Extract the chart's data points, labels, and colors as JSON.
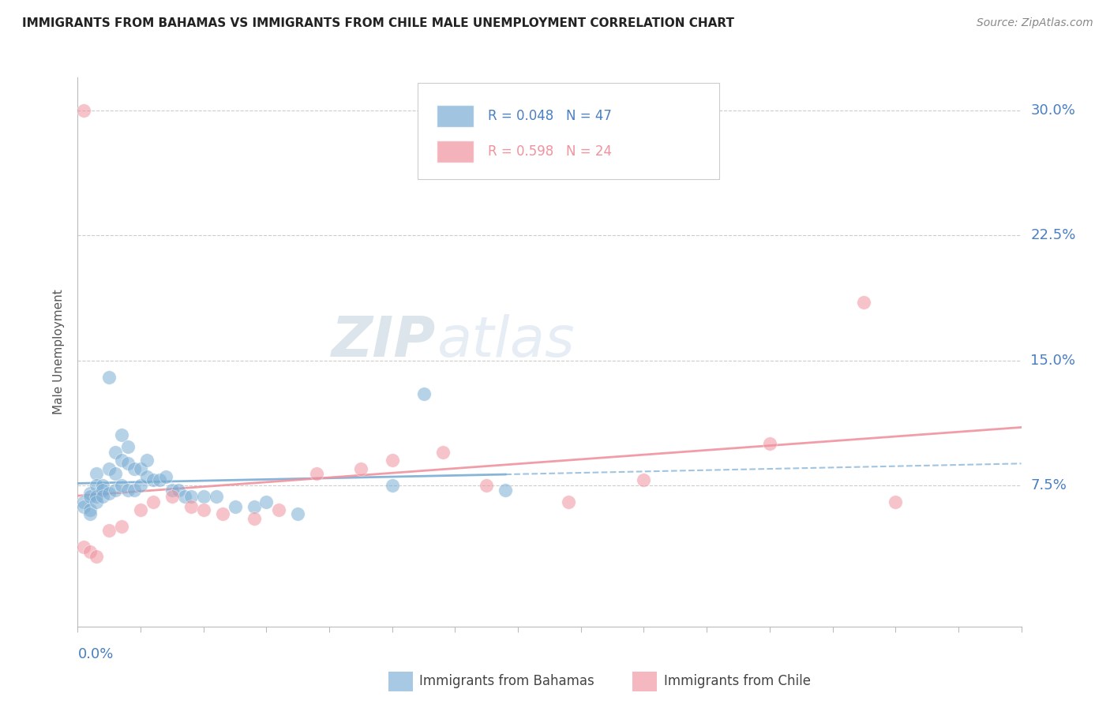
{
  "title": "IMMIGRANTS FROM BAHAMAS VS IMMIGRANTS FROM CHILE MALE UNEMPLOYMENT CORRELATION CHART",
  "source": "Source: ZipAtlas.com",
  "ylabel": "Male Unemployment",
  "xmin": 0.0,
  "xmax": 0.15,
  "ymin": -0.01,
  "ymax": 0.32,
  "yticks": [
    0.075,
    0.15,
    0.225,
    0.3
  ],
  "ytick_labels": [
    "7.5%",
    "15.0%",
    "22.5%",
    "30.0%"
  ],
  "blue_color": "#7aadd4",
  "pink_color": "#f0939f",
  "blue_R": 0.048,
  "blue_N": 47,
  "pink_R": 0.598,
  "pink_N": 24,
  "blue_label": "Immigrants from Bahamas",
  "pink_label": "Immigrants from Chile",
  "axis_label_color": "#4a7fc1",
  "watermark_color": "#c8d8e8",
  "blue_x": [
    0.001,
    0.001,
    0.002,
    0.002,
    0.002,
    0.002,
    0.003,
    0.003,
    0.003,
    0.003,
    0.004,
    0.004,
    0.004,
    0.005,
    0.005,
    0.005,
    0.006,
    0.006,
    0.006,
    0.007,
    0.007,
    0.007,
    0.008,
    0.008,
    0.008,
    0.009,
    0.009,
    0.01,
    0.01,
    0.011,
    0.011,
    0.012,
    0.013,
    0.014,
    0.015,
    0.016,
    0.017,
    0.018,
    0.02,
    0.022,
    0.025,
    0.028,
    0.03,
    0.035,
    0.05,
    0.055,
    0.068
  ],
  "blue_y": [
    0.065,
    0.062,
    0.07,
    0.068,
    0.06,
    0.058,
    0.082,
    0.075,
    0.068,
    0.065,
    0.075,
    0.072,
    0.068,
    0.14,
    0.085,
    0.07,
    0.095,
    0.082,
    0.072,
    0.105,
    0.09,
    0.075,
    0.098,
    0.088,
    0.072,
    0.085,
    0.072,
    0.085,
    0.075,
    0.09,
    0.08,
    0.078,
    0.078,
    0.08,
    0.072,
    0.072,
    0.068,
    0.068,
    0.068,
    0.068,
    0.062,
    0.062,
    0.065,
    0.058,
    0.075,
    0.13,
    0.072
  ],
  "pink_x": [
    0.001,
    0.002,
    0.003,
    0.005,
    0.007,
    0.01,
    0.012,
    0.015,
    0.018,
    0.02,
    0.023,
    0.028,
    0.032,
    0.038,
    0.045,
    0.05,
    0.058,
    0.065,
    0.078,
    0.09,
    0.11,
    0.125,
    0.13,
    0.001
  ],
  "pink_y": [
    0.038,
    0.035,
    0.032,
    0.048,
    0.05,
    0.06,
    0.065,
    0.068,
    0.062,
    0.06,
    0.058,
    0.055,
    0.06,
    0.082,
    0.085,
    0.09,
    0.095,
    0.075,
    0.065,
    0.078,
    0.1,
    0.185,
    0.065,
    0.3
  ]
}
